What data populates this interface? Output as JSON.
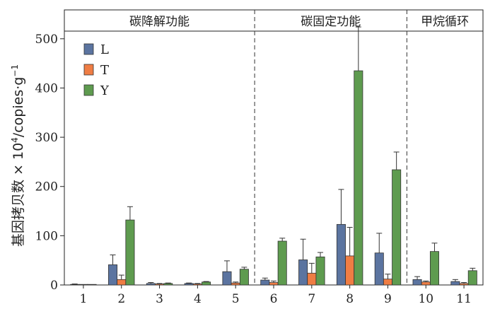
{
  "chart_data": {
    "type": "bar",
    "ylabel": "基因拷贝数×10⁴/copies·g⁻¹",
    "ylabel_parts": {
      "main": "基因拷贝数 × 10",
      "exp": "4",
      "unit": "/copies·g",
      "unit_exp": "−1"
    },
    "ylim": [
      0,
      550
    ],
    "yticks": [
      0,
      100,
      200,
      300,
      400,
      500
    ],
    "categories": [
      "1",
      "2",
      "3",
      "4",
      "5",
      "6",
      "7",
      "8",
      "9",
      "10",
      "11"
    ],
    "sections": [
      {
        "label": "碳降解功能",
        "from": 1,
        "to": 5
      },
      {
        "label": "碳固定功能",
        "from": 6,
        "to": 9
      },
      {
        "label": "甲烷循环",
        "from": 10,
        "to": 11
      }
    ],
    "legend_position": "top-left",
    "grid": false,
    "series": [
      {
        "name": "L",
        "color": "#5b74a0",
        "values": [
          1,
          41,
          3,
          3,
          27,
          10,
          51,
          123,
          65,
          11,
          7
        ],
        "errors": [
          1,
          20,
          2,
          1,
          22,
          4,
          42,
          71,
          40,
          6,
          4
        ]
      },
      {
        "name": "T",
        "color": "#ef7d44",
        "values": [
          1,
          11,
          2,
          2,
          4,
          5,
          24,
          59,
          12,
          6,
          3
        ],
        "errors": [
          0,
          9,
          1,
          1,
          2,
          3,
          20,
          58,
          10,
          2,
          2
        ]
      },
      {
        "name": "Y",
        "color": "#5e9b4f",
        "values": [
          1,
          132,
          3,
          6,
          32,
          89,
          57,
          435,
          234,
          68,
          29
        ],
        "errors": [
          0,
          27,
          1,
          1,
          4,
          6,
          9,
          89,
          36,
          17,
          5
        ]
      }
    ]
  }
}
